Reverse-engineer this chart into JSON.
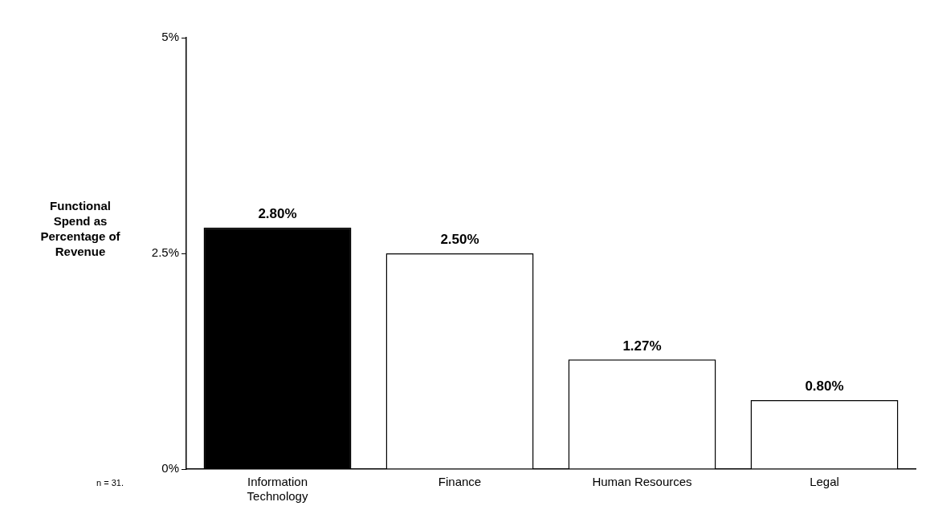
{
  "chart_data": {
    "type": "bar",
    "ylabel": "Functional Spend as Percentage of Revenue",
    "categories": [
      "Information Technology",
      "Finance",
      "Human Resources",
      "Legal"
    ],
    "values": [
      2.8,
      2.5,
      1.27,
      0.8
    ],
    "colors": [
      "#000000",
      "#ffffff",
      "#ffffff",
      "#ffffff"
    ],
    "value_labels": [
      "2.80%",
      "2.50%",
      "1.27%",
      "0.80%"
    ],
    "ylim": [
      0,
      5
    ],
    "yticks": [
      {
        "value": 0,
        "label": "0%"
      },
      {
        "value": 2.5,
        "label": "2.5%"
      },
      {
        "value": 5,
        "label": "5%"
      }
    ],
    "grid": false,
    "legend": false,
    "annotations": [
      "n = 31."
    ]
  }
}
